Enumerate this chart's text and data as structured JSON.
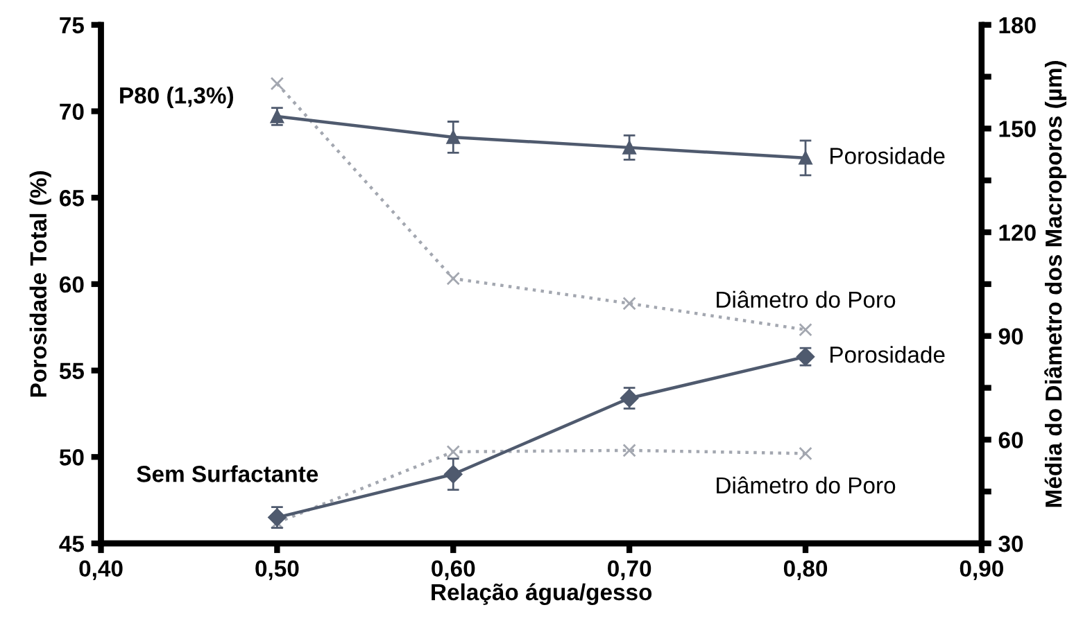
{
  "chart_data": {
    "type": "line",
    "xlabel": "Relação água/gesso",
    "ylabel": "Porosidade Total (%)",
    "y2label": "Média do Diâmetro dos Macroporos (µm)",
    "x": [
      0.5,
      0.6,
      0.7,
      0.8
    ],
    "series": [
      {
        "name": "Porosidade",
        "color": "#4f5a6e",
        "values": [
          69.7,
          68.5,
          67.9,
          67.3
        ],
        "errors": [
          0.5,
          0.9,
          0.7,
          1.0
        ],
        "marker": "triangle",
        "line_style": "solid"
      },
      {
        "name": "Diâmetro do Poro",
        "color": "#a3a7b0",
        "values": [
          163,
          106.6,
          99.4,
          91.8
        ],
        "axis": "y2",
        "marker": "cross",
        "line_style": "dotted"
      },
      {
        "name": "Porosidade",
        "color": "#4f5a6e",
        "values": [
          46.5,
          49.0,
          53.4,
          55.8
        ],
        "errors": [
          0.6,
          0.9,
          0.6,
          0.5
        ],
        "marker": "diamond",
        "line_style": "solid"
      },
      {
        "name": "Diâmetro do Poro",
        "color": "#a3a7b0",
        "values": [
          36,
          56.5,
          56.9,
          56
        ],
        "axis": "y2",
        "marker": "cross",
        "line_style": "dotted"
      }
    ],
    "xlim": [
      0.4,
      0.9
    ],
    "xticks": [
      {
        "value": 0.4,
        "label": "0,40"
      },
      {
        "value": 0.5,
        "label": "0,50"
      },
      {
        "value": 0.6,
        "label": "0,60"
      },
      {
        "value": 0.7,
        "label": "0,70"
      },
      {
        "value": 0.8,
        "label": "0,80"
      },
      {
        "value": 0.9,
        "label": "0,90"
      }
    ],
    "ylim": [
      45,
      75
    ],
    "yticks": [
      45,
      50,
      55,
      60,
      65,
      70,
      75
    ],
    "y2lim": [
      30,
      180
    ],
    "y2ticks": [
      30,
      {
        "value": 45,
        "label": null
      },
      60,
      {
        "value": 75,
        "label": null
      },
      90,
      {
        "value": 105,
        "label": null
      },
      120,
      {
        "value": 135,
        "label": null
      },
      150,
      {
        "value": 165,
        "label": null
      },
      180
    ],
    "annotations": [
      "P80 (1,3%)",
      "Sem Surfactante"
    ]
  }
}
